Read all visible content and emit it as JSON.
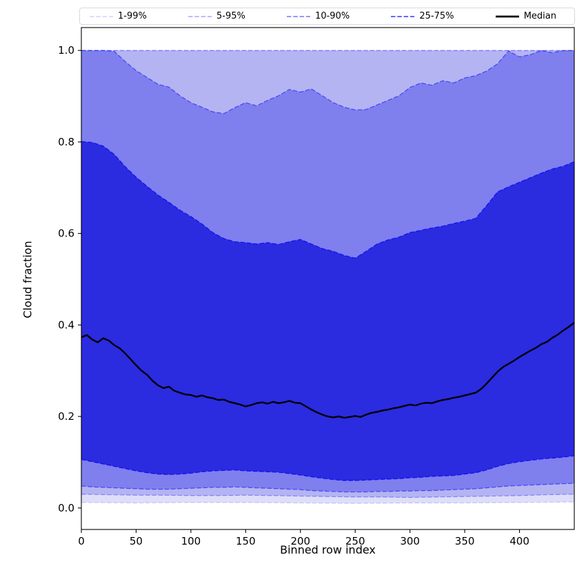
{
  "chart_data": {
    "type": "area",
    "title": "",
    "xlabel": "Binned row index",
    "ylabel": "Cloud fraction",
    "xlim": [
      0,
      450
    ],
    "ylim": [
      -0.047,
      1.05
    ],
    "xticks": [
      0,
      50,
      100,
      150,
      200,
      250,
      300,
      350,
      400
    ],
    "yticks": [
      0.0,
      0.2,
      0.4,
      0.6,
      0.8,
      1.0
    ],
    "grid": false,
    "legend_position": "top",
    "legend_labels": [
      "1-99%",
      "5-95%",
      "10-90%",
      "25-75%",
      "Median"
    ],
    "bands": [
      {
        "label": "1-99%",
        "fill": "#dedef9",
        "edge": "rgba(0,0,255,0.18)",
        "x_start": 0,
        "x_step": 50,
        "lo": [
          0.012,
          0.011,
          0.012,
          0.012,
          0.011,
          0.01,
          0.011,
          0.011,
          0.012,
          0.013
        ],
        "hi": [
          1.0,
          1.0,
          1.0,
          1.0,
          1.0,
          1.0,
          1.0,
          1.0,
          1.0,
          1.0
        ]
      },
      {
        "label": "5-95%",
        "fill": "#b4b4f3",
        "edge": "rgba(0,0,255,0.35)",
        "x_start": 0,
        "x_step": 25,
        "lo": [
          0.03,
          0.029,
          0.028,
          0.028,
          0.027,
          0.027,
          0.028,
          0.027,
          0.026,
          0.025,
          0.024,
          0.024,
          0.023,
          0.024,
          0.025,
          0.026,
          0.027,
          0.029,
          0.03
        ],
        "hi": [
          1.0,
          1.0,
          1.0,
          1.0,
          1.0,
          1.0,
          1.0,
          1.0,
          1.0,
          1.0,
          1.0,
          1.0,
          1.0,
          1.0,
          1.0,
          1.0,
          1.0,
          1.0,
          1.0
        ]
      },
      {
        "label": "10-90%",
        "fill": "#7f7fee",
        "edge": "rgba(0,0,255,0.55)",
        "x_start": 0,
        "x_step": 10,
        "lo": [
          0.048,
          0.046,
          0.045,
          0.044,
          0.043,
          0.042,
          0.041,
          0.041,
          0.041,
          0.042,
          0.043,
          0.044,
          0.045,
          0.045,
          0.046,
          0.045,
          0.044,
          0.043,
          0.042,
          0.041,
          0.04,
          0.038,
          0.037,
          0.036,
          0.035,
          0.035,
          0.035,
          0.036,
          0.036,
          0.037,
          0.037,
          0.038,
          0.038,
          0.039,
          0.04,
          0.041,
          0.042,
          0.044,
          0.046,
          0.048,
          0.049,
          0.05,
          0.051,
          0.052,
          0.053,
          0.054
        ],
        "hi": [
          1.0,
          1.0,
          1.0,
          0.998,
          0.976,
          0.956,
          0.941,
          0.926,
          0.92,
          0.901,
          0.886,
          0.876,
          0.866,
          0.862,
          0.875,
          0.886,
          0.879,
          0.891,
          0.901,
          0.915,
          0.909,
          0.916,
          0.901,
          0.886,
          0.876,
          0.87,
          0.871,
          0.881,
          0.891,
          0.901,
          0.919,
          0.929,
          0.924,
          0.934,
          0.929,
          0.94,
          0.945,
          0.955,
          0.971,
          0.999,
          0.986,
          0.991,
          1.0,
          0.995,
          1.0,
          1.0
        ]
      },
      {
        "label": "25-75%",
        "fill": "#2b2be0",
        "edge": "rgba(0,0,255,0.8)",
        "x_start": 0,
        "x_step": 10,
        "lo": [
          0.106,
          0.101,
          0.096,
          0.091,
          0.086,
          0.081,
          0.077,
          0.074,
          0.073,
          0.074,
          0.076,
          0.079,
          0.081,
          0.082,
          0.083,
          0.081,
          0.08,
          0.079,
          0.078,
          0.075,
          0.072,
          0.068,
          0.065,
          0.062,
          0.06,
          0.06,
          0.061,
          0.062,
          0.063,
          0.064,
          0.066,
          0.067,
          0.069,
          0.07,
          0.071,
          0.074,
          0.077,
          0.083,
          0.091,
          0.097,
          0.101,
          0.104,
          0.107,
          0.109,
          0.111,
          0.114
        ],
        "hi": [
          0.801,
          0.799,
          0.791,
          0.773,
          0.746,
          0.723,
          0.703,
          0.684,
          0.668,
          0.651,
          0.637,
          0.621,
          0.602,
          0.589,
          0.582,
          0.58,
          0.577,
          0.58,
          0.576,
          0.582,
          0.587,
          0.577,
          0.567,
          0.561,
          0.552,
          0.546,
          0.561,
          0.577,
          0.586,
          0.592,
          0.602,
          0.607,
          0.612,
          0.616,
          0.622,
          0.627,
          0.633,
          0.661,
          0.691,
          0.702,
          0.712,
          0.722,
          0.732,
          0.741,
          0.747,
          0.757
        ]
      }
    ],
    "median": {
      "label": "Median",
      "color": "#000000",
      "x_start": 0,
      "x_step": 5,
      "y": [
        0.373,
        0.378,
        0.368,
        0.362,
        0.371,
        0.366,
        0.356,
        0.349,
        0.338,
        0.325,
        0.312,
        0.3,
        0.291,
        0.278,
        0.268,
        0.262,
        0.265,
        0.256,
        0.252,
        0.248,
        0.247,
        0.243,
        0.246,
        0.242,
        0.24,
        0.236,
        0.237,
        0.232,
        0.229,
        0.226,
        0.222,
        0.225,
        0.229,
        0.231,
        0.228,
        0.232,
        0.229,
        0.231,
        0.234,
        0.23,
        0.229,
        0.222,
        0.215,
        0.209,
        0.204,
        0.2,
        0.198,
        0.2,
        0.197,
        0.199,
        0.201,
        0.199,
        0.204,
        0.208,
        0.21,
        0.213,
        0.215,
        0.218,
        0.22,
        0.223,
        0.226,
        0.224,
        0.228,
        0.23,
        0.229,
        0.233,
        0.236,
        0.238,
        0.241,
        0.243,
        0.246,
        0.249,
        0.252,
        0.26,
        0.272,
        0.285,
        0.298,
        0.308,
        0.315,
        0.322,
        0.33,
        0.337,
        0.344,
        0.35,
        0.358,
        0.363,
        0.372,
        0.379,
        0.388,
        0.396,
        0.405
      ]
    }
  }
}
